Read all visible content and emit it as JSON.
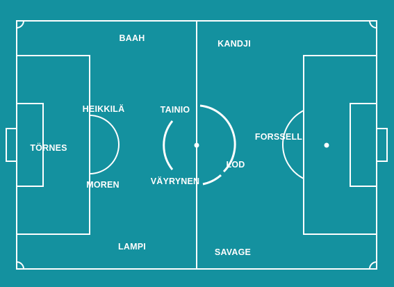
{
  "colors": {
    "pitch": "#14919F",
    "lines": "#FFFFFF"
  },
  "players": {
    "baah": "BAAH",
    "kandji": "KANDJI",
    "heikkila": "HEIKKILÄ",
    "tainio": "TAINIO",
    "tornes": "TÖRNES",
    "forssell": "FORSSELL",
    "lod": "LOD",
    "moren": "MOREN",
    "vayrynen": "VÄYRYNEN",
    "lampi": "LAMPI",
    "savage": "SAVAGE"
  }
}
